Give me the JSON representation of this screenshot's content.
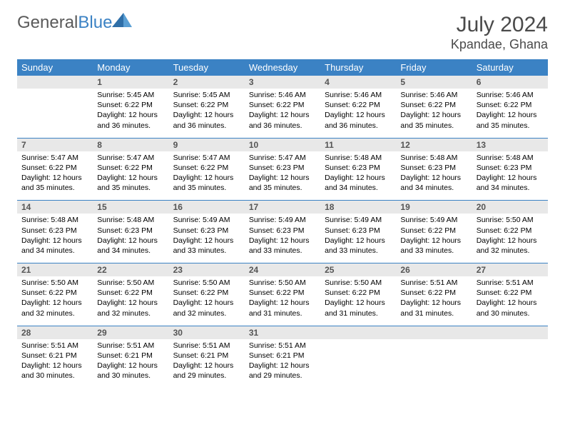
{
  "brand": {
    "first": "General",
    "second": "Blue"
  },
  "title": "July 2024",
  "location": "Kpandae, Ghana",
  "days": [
    "Sunday",
    "Monday",
    "Tuesday",
    "Wednesday",
    "Thursday",
    "Friday",
    "Saturday"
  ],
  "colors": {
    "header_bg": "#3b82c4",
    "header_fg": "#ffffff",
    "daynum_bg": "#e8e8e8",
    "daynum_fg": "#555555",
    "border": "#3b82c4",
    "text": "#000000",
    "title_fg": "#4a4a4a"
  },
  "weeks": [
    [
      {
        "n": "",
        "sr": "",
        "ss": "",
        "dl": ""
      },
      {
        "n": "1",
        "sr": "5:45 AM",
        "ss": "6:22 PM",
        "dl": "12 hours and 36 minutes."
      },
      {
        "n": "2",
        "sr": "5:45 AM",
        "ss": "6:22 PM",
        "dl": "12 hours and 36 minutes."
      },
      {
        "n": "3",
        "sr": "5:46 AM",
        "ss": "6:22 PM",
        "dl": "12 hours and 36 minutes."
      },
      {
        "n": "4",
        "sr": "5:46 AM",
        "ss": "6:22 PM",
        "dl": "12 hours and 36 minutes."
      },
      {
        "n": "5",
        "sr": "5:46 AM",
        "ss": "6:22 PM",
        "dl": "12 hours and 35 minutes."
      },
      {
        "n": "6",
        "sr": "5:46 AM",
        "ss": "6:22 PM",
        "dl": "12 hours and 35 minutes."
      }
    ],
    [
      {
        "n": "7",
        "sr": "5:47 AM",
        "ss": "6:22 PM",
        "dl": "12 hours and 35 minutes."
      },
      {
        "n": "8",
        "sr": "5:47 AM",
        "ss": "6:22 PM",
        "dl": "12 hours and 35 minutes."
      },
      {
        "n": "9",
        "sr": "5:47 AM",
        "ss": "6:22 PM",
        "dl": "12 hours and 35 minutes."
      },
      {
        "n": "10",
        "sr": "5:47 AM",
        "ss": "6:23 PM",
        "dl": "12 hours and 35 minutes."
      },
      {
        "n": "11",
        "sr": "5:48 AM",
        "ss": "6:23 PM",
        "dl": "12 hours and 34 minutes."
      },
      {
        "n": "12",
        "sr": "5:48 AM",
        "ss": "6:23 PM",
        "dl": "12 hours and 34 minutes."
      },
      {
        "n": "13",
        "sr": "5:48 AM",
        "ss": "6:23 PM",
        "dl": "12 hours and 34 minutes."
      }
    ],
    [
      {
        "n": "14",
        "sr": "5:48 AM",
        "ss": "6:23 PM",
        "dl": "12 hours and 34 minutes."
      },
      {
        "n": "15",
        "sr": "5:48 AM",
        "ss": "6:23 PM",
        "dl": "12 hours and 34 minutes."
      },
      {
        "n": "16",
        "sr": "5:49 AM",
        "ss": "6:23 PM",
        "dl": "12 hours and 33 minutes."
      },
      {
        "n": "17",
        "sr": "5:49 AM",
        "ss": "6:23 PM",
        "dl": "12 hours and 33 minutes."
      },
      {
        "n": "18",
        "sr": "5:49 AM",
        "ss": "6:23 PM",
        "dl": "12 hours and 33 minutes."
      },
      {
        "n": "19",
        "sr": "5:49 AM",
        "ss": "6:22 PM",
        "dl": "12 hours and 33 minutes."
      },
      {
        "n": "20",
        "sr": "5:50 AM",
        "ss": "6:22 PM",
        "dl": "12 hours and 32 minutes."
      }
    ],
    [
      {
        "n": "21",
        "sr": "5:50 AM",
        "ss": "6:22 PM",
        "dl": "12 hours and 32 minutes."
      },
      {
        "n": "22",
        "sr": "5:50 AM",
        "ss": "6:22 PM",
        "dl": "12 hours and 32 minutes."
      },
      {
        "n": "23",
        "sr": "5:50 AM",
        "ss": "6:22 PM",
        "dl": "12 hours and 32 minutes."
      },
      {
        "n": "24",
        "sr": "5:50 AM",
        "ss": "6:22 PM",
        "dl": "12 hours and 31 minutes."
      },
      {
        "n": "25",
        "sr": "5:50 AM",
        "ss": "6:22 PM",
        "dl": "12 hours and 31 minutes."
      },
      {
        "n": "26",
        "sr": "5:51 AM",
        "ss": "6:22 PM",
        "dl": "12 hours and 31 minutes."
      },
      {
        "n": "27",
        "sr": "5:51 AM",
        "ss": "6:22 PM",
        "dl": "12 hours and 30 minutes."
      }
    ],
    [
      {
        "n": "28",
        "sr": "5:51 AM",
        "ss": "6:21 PM",
        "dl": "12 hours and 30 minutes."
      },
      {
        "n": "29",
        "sr": "5:51 AM",
        "ss": "6:21 PM",
        "dl": "12 hours and 30 minutes."
      },
      {
        "n": "30",
        "sr": "5:51 AM",
        "ss": "6:21 PM",
        "dl": "12 hours and 29 minutes."
      },
      {
        "n": "31",
        "sr": "5:51 AM",
        "ss": "6:21 PM",
        "dl": "12 hours and 29 minutes."
      },
      {
        "n": "",
        "sr": "",
        "ss": "",
        "dl": ""
      },
      {
        "n": "",
        "sr": "",
        "ss": "",
        "dl": ""
      },
      {
        "n": "",
        "sr": "",
        "ss": "",
        "dl": ""
      }
    ]
  ]
}
